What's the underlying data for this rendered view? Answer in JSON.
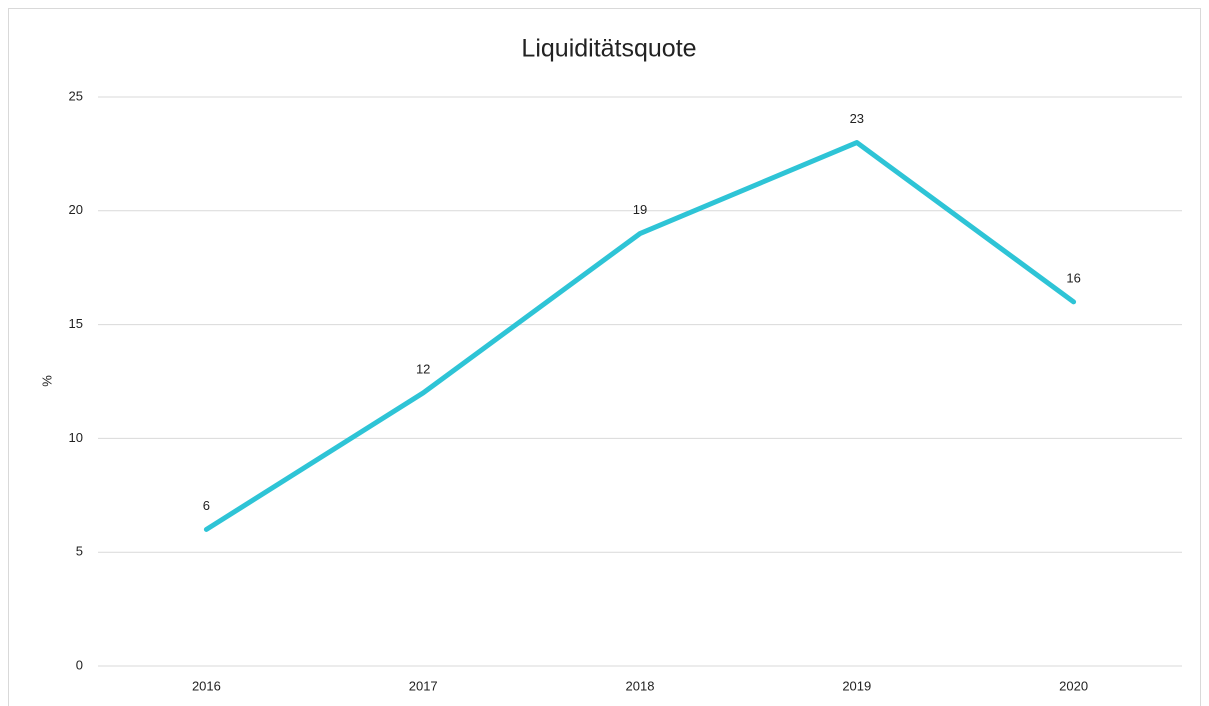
{
  "chart_data": {
    "type": "line",
    "title": "Liquiditätsquote",
    "y_label": "%",
    "categories": [
      "2016",
      "2017",
      "2018",
      "2019",
      "2020"
    ],
    "series": [
      {
        "name": "Liquiditätsquote",
        "color": "#2ec4d6",
        "values": [
          6,
          12,
          19,
          23,
          16
        ]
      }
    ],
    "ylim": [
      0,
      25
    ],
    "yticks": [
      0,
      5,
      10,
      15,
      20,
      25
    ],
    "grid": true,
    "data_labels": true
  }
}
